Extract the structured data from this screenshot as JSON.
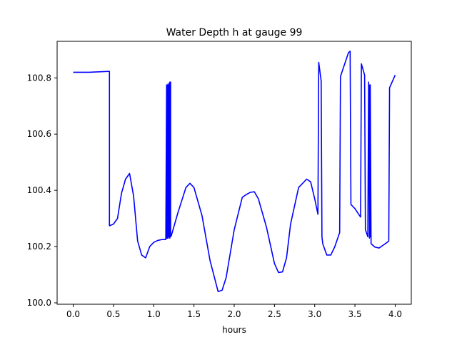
{
  "chart_data": {
    "type": "line",
    "title": "Water Depth h at gauge 99",
    "xlabel": "hours",
    "ylabel": "",
    "xlim": [
      -0.2,
      4.2
    ],
    "ylim": [
      99.995,
      100.93
    ],
    "xticks": [
      0.0,
      0.5,
      1.0,
      1.5,
      2.0,
      2.5,
      3.0,
      3.5,
      4.0
    ],
    "xtick_labels": [
      "0.0",
      "0.5",
      "1.0",
      "1.5",
      "2.0",
      "2.5",
      "3.0",
      "3.5",
      "4.0"
    ],
    "yticks": [
      100.0,
      100.2,
      100.4,
      100.6,
      100.8
    ],
    "ytick_labels": [
      "100.0",
      "100.2",
      "100.4",
      "100.6",
      "100.8"
    ],
    "grid": false,
    "color": "#0000ff",
    "series": [
      {
        "x": [
          0.0,
          0.2,
          0.44,
          0.45,
          0.45,
          0.5,
          0.55,
          0.6,
          0.65,
          0.7,
          0.75,
          0.8,
          0.85,
          0.9,
          0.95,
          1.0,
          1.05,
          1.1,
          1.15,
          1.16,
          1.16,
          1.17,
          1.17,
          1.18,
          1.18,
          1.19,
          1.19,
          1.2,
          1.2,
          1.21,
          1.21,
          1.22,
          1.3,
          1.4,
          1.45,
          1.5,
          1.6,
          1.7,
          1.8,
          1.85,
          1.9,
          2.0,
          2.1,
          2.15,
          2.2,
          2.25,
          2.3,
          2.4,
          2.5,
          2.55,
          2.6,
          2.65,
          2.7,
          2.8,
          2.9,
          2.95,
          3.0,
          3.04,
          3.05,
          3.08,
          3.09,
          3.1,
          3.15,
          3.2,
          3.25,
          3.31,
          3.32,
          3.42,
          3.44,
          3.45,
          3.5,
          3.57,
          3.58,
          3.62,
          3.63,
          3.66,
          3.67,
          3.68,
          3.68,
          3.69,
          3.69,
          3.7,
          3.7,
          3.75,
          3.8,
          3.85,
          3.9,
          3.92,
          3.93,
          4.0
        ],
        "y": [
          100.82,
          100.82,
          100.823,
          100.823,
          100.274,
          100.28,
          100.3,
          100.39,
          100.44,
          100.46,
          100.38,
          100.22,
          100.17,
          100.16,
          100.2,
          100.215,
          100.222,
          100.225,
          100.225,
          100.775,
          100.23,
          100.775,
          100.23,
          100.78,
          100.23,
          100.775,
          100.235,
          100.785,
          100.23,
          100.785,
          100.235,
          100.24,
          100.32,
          100.41,
          100.425,
          100.41,
          100.31,
          100.15,
          100.04,
          100.045,
          100.09,
          100.26,
          100.375,
          100.385,
          100.393,
          100.395,
          100.37,
          100.27,
          100.14,
          100.108,
          100.11,
          100.16,
          100.28,
          100.41,
          100.44,
          100.43,
          100.37,
          100.315,
          100.855,
          100.79,
          100.235,
          100.21,
          100.17,
          100.17,
          100.2,
          100.25,
          100.805,
          100.89,
          100.895,
          100.35,
          100.335,
          100.305,
          100.85,
          100.81,
          100.26,
          100.235,
          100.785,
          100.23,
          100.775,
          100.235,
          100.775,
          100.22,
          100.21,
          100.198,
          100.195,
          100.205,
          100.215,
          100.22,
          100.765,
          100.81
        ]
      }
    ]
  }
}
